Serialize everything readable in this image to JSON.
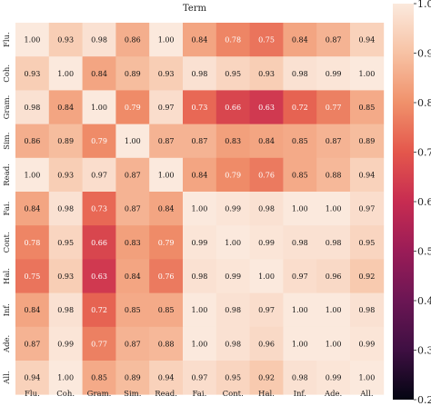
{
  "chart_data": {
    "type": "heatmap",
    "title": "Term",
    "xlabel": "",
    "ylabel": "",
    "categories": [
      "Flu.",
      "Coh.",
      "Gram.",
      "Sim.",
      "Read.",
      "Fai.",
      "Cont.",
      "Hal.",
      "Inf.",
      "Ade.",
      "All."
    ],
    "row_labels": [
      "Flu.",
      "Coh.",
      "Gram.",
      "Sim.",
      "Read.",
      "Fai.",
      "Cont.",
      "Hal.",
      "Inf.",
      "Ade.",
      "All."
    ],
    "values": [
      [
        1.0,
        0.93,
        0.98,
        0.86,
        1.0,
        0.84,
        0.78,
        0.75,
        0.84,
        0.87,
        0.94
      ],
      [
        0.93,
        1.0,
        0.84,
        0.89,
        0.93,
        0.98,
        0.95,
        0.93,
        0.98,
        0.99,
        1.0
      ],
      [
        0.98,
        0.84,
        1.0,
        0.79,
        0.97,
        0.73,
        0.66,
        0.63,
        0.72,
        0.77,
        0.85
      ],
      [
        0.86,
        0.89,
        0.79,
        1.0,
        0.87,
        0.87,
        0.83,
        0.84,
        0.85,
        0.87,
        0.89
      ],
      [
        1.0,
        0.93,
        0.97,
        0.87,
        1.0,
        0.84,
        0.79,
        0.76,
        0.85,
        0.88,
        0.94
      ],
      [
        0.84,
        0.98,
        0.73,
        0.87,
        0.84,
        1.0,
        0.99,
        0.98,
        1.0,
        1.0,
        0.97
      ],
      [
        0.78,
        0.95,
        0.66,
        0.83,
        0.79,
        0.99,
        1.0,
        0.99,
        0.98,
        0.98,
        0.95
      ],
      [
        0.75,
        0.93,
        0.63,
        0.84,
        0.76,
        0.98,
        0.99,
        1.0,
        0.97,
        0.96,
        0.92
      ],
      [
        0.84,
        0.98,
        0.72,
        0.85,
        0.85,
        1.0,
        0.98,
        0.97,
        1.0,
        1.0,
        0.98
      ],
      [
        0.87,
        0.99,
        0.77,
        0.87,
        0.88,
        1.0,
        0.98,
        0.96,
        1.0,
        1.0,
        0.99
      ],
      [
        0.94,
        1.0,
        0.85,
        0.89,
        0.94,
        0.97,
        0.95,
        0.92,
        0.98,
        0.99,
        1.0
      ]
    ],
    "colorbar": {
      "range": [
        0.2,
        1.0
      ],
      "ticks": [
        "0.2",
        "0.3",
        "0.4",
        "0.5",
        "0.6",
        "0.7",
        "0.8",
        "0.9",
        "1.0"
      ]
    },
    "colormap": [
      "#fbe9dd",
      "#f7c2a4",
      "#f0916b",
      "#e4574c",
      "#c72c51",
      "#9a1c57",
      "#6b1654",
      "#3e0f42",
      "#030512"
    ],
    "legend": "right"
  }
}
